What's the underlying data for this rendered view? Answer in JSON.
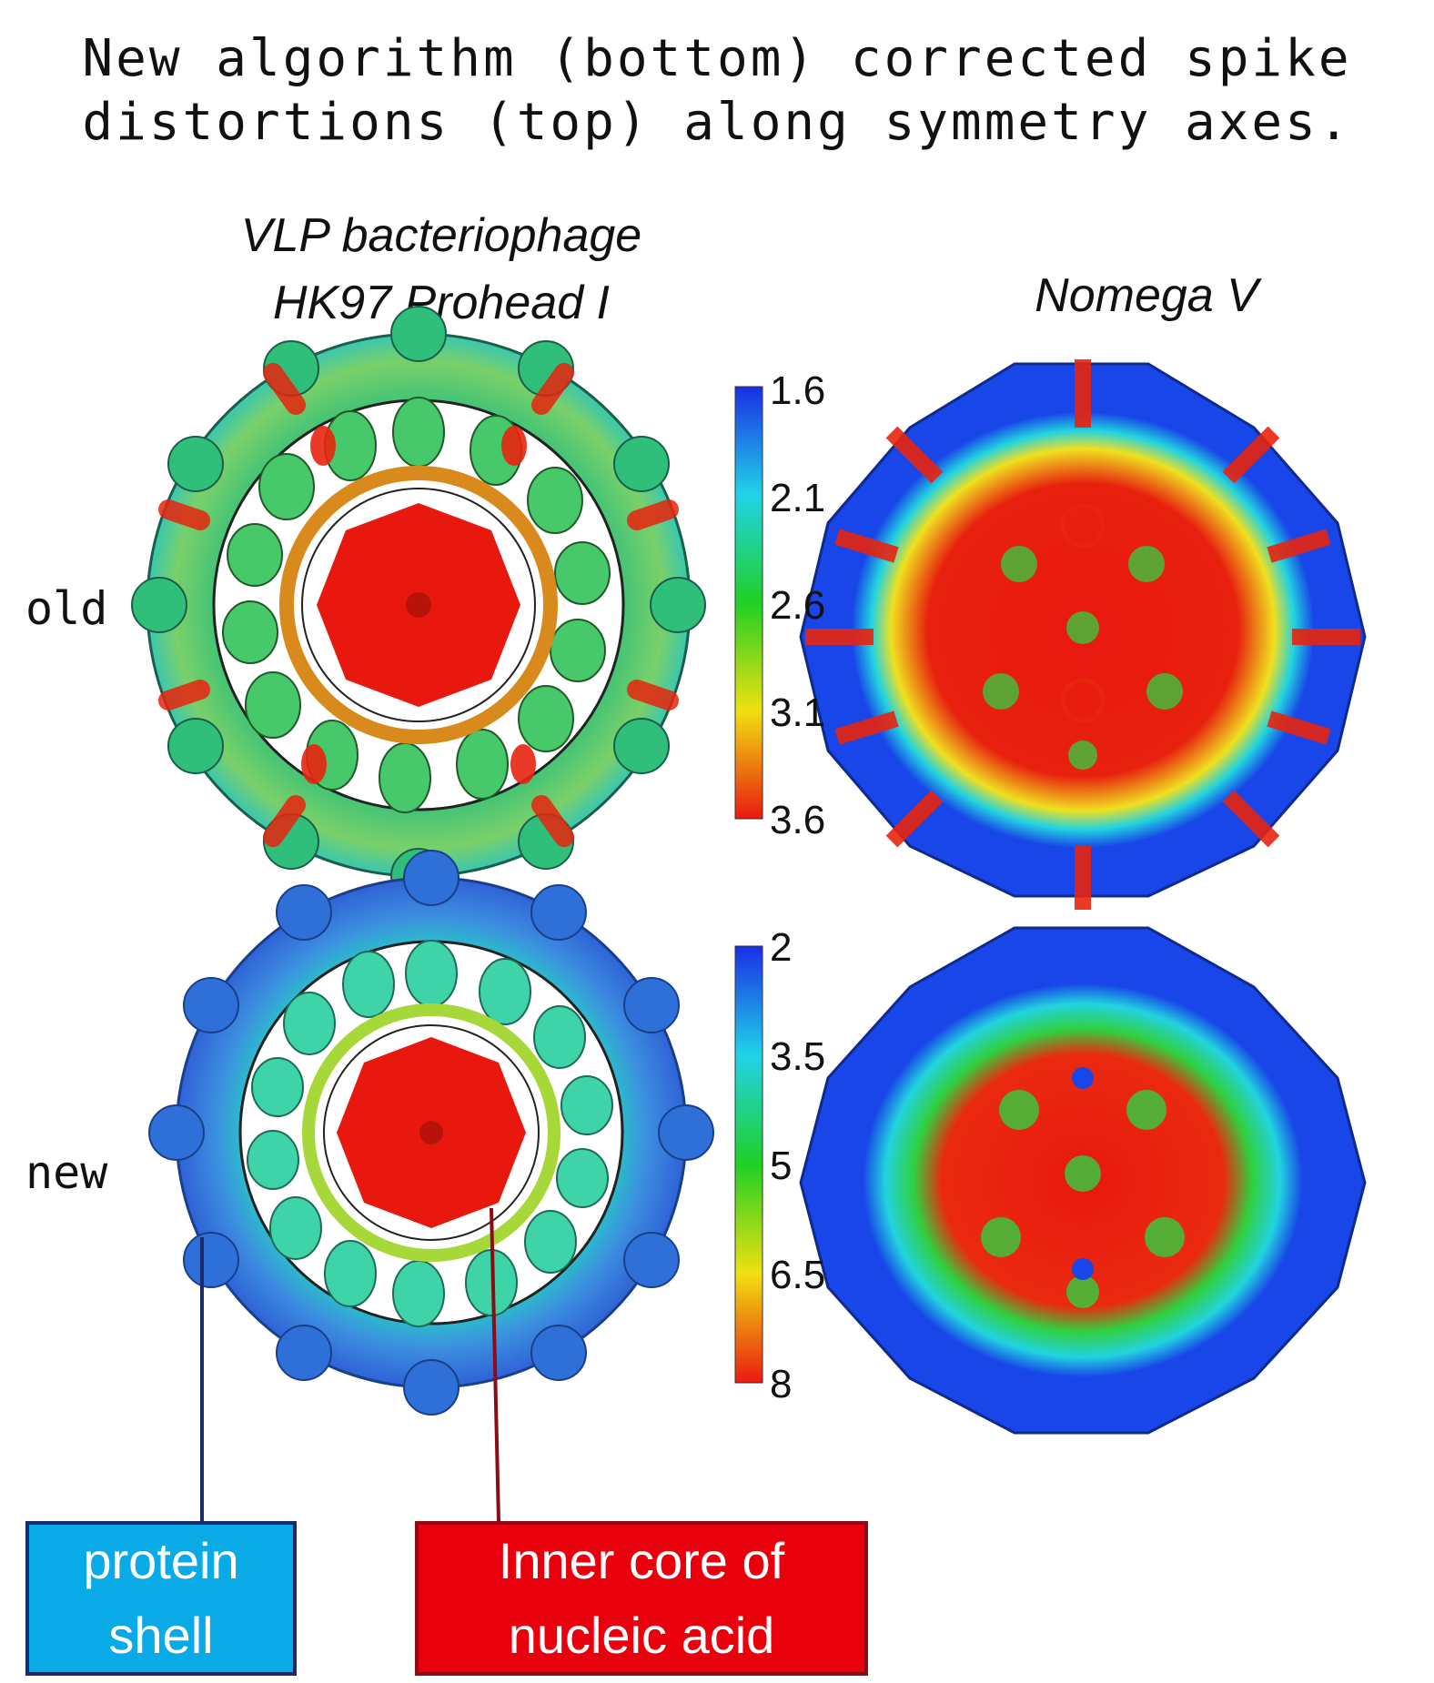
{
  "caption": {
    "line1": "New algorithm (bottom) corrected spike",
    "line2": "distortions (top) along symmetry axes."
  },
  "columns": {
    "left": {
      "line1": "VLP bacteriophage",
      "line2": "HK97 Prohead I"
    },
    "right": {
      "title": "Nomega V"
    }
  },
  "rows": {
    "top": "old",
    "bottom": "new"
  },
  "colorbars": {
    "top": {
      "ticks": [
        "1.6",
        "2.1",
        "2.6",
        "3.1",
        "3.6"
      ]
    },
    "bottom": {
      "ticks": [
        "2",
        "3.5",
        "5",
        "6.5",
        "8"
      ]
    }
  },
  "callouts": {
    "shell": {
      "line1": "protein",
      "line2": "shell",
      "color": "#0aaae6"
    },
    "core": {
      "line1": "Inner core of",
      "line2": "nucleic acid",
      "color": "#e8000c"
    }
  },
  "colors": {
    "shell_old": "#2fbf7a",
    "shell_new": "#2f6fd8",
    "core": "#e8180e",
    "nomega_outer": "#1846e8"
  }
}
